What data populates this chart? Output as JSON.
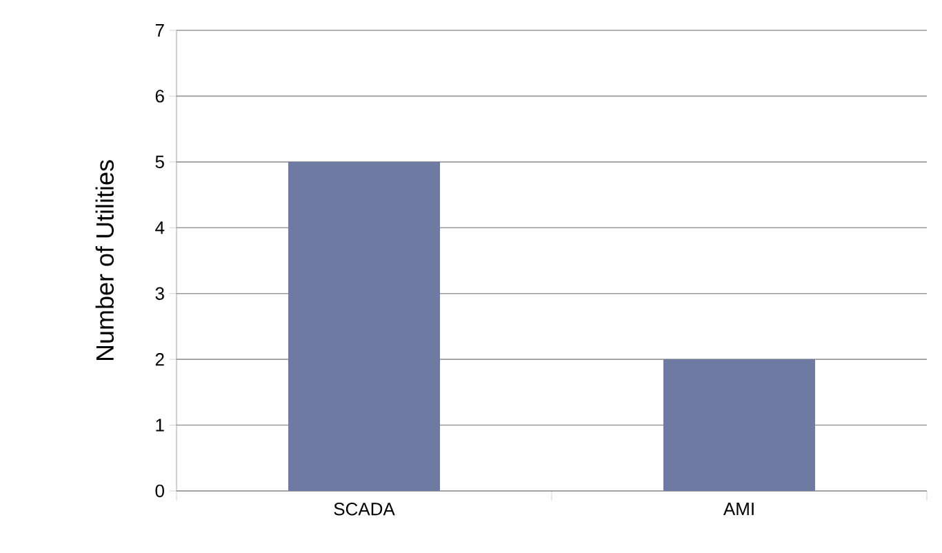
{
  "chart_data": {
    "type": "bar",
    "ylabel": "Number of Utilities",
    "categories": [
      "SCADA",
      "AMI"
    ],
    "values": [
      5,
      2
    ],
    "color": "#6e7aa1",
    "ylim": [
      0,
      7
    ],
    "yticks": [
      0,
      1,
      2,
      3,
      4,
      5,
      6,
      7
    ],
    "grid": "y"
  }
}
